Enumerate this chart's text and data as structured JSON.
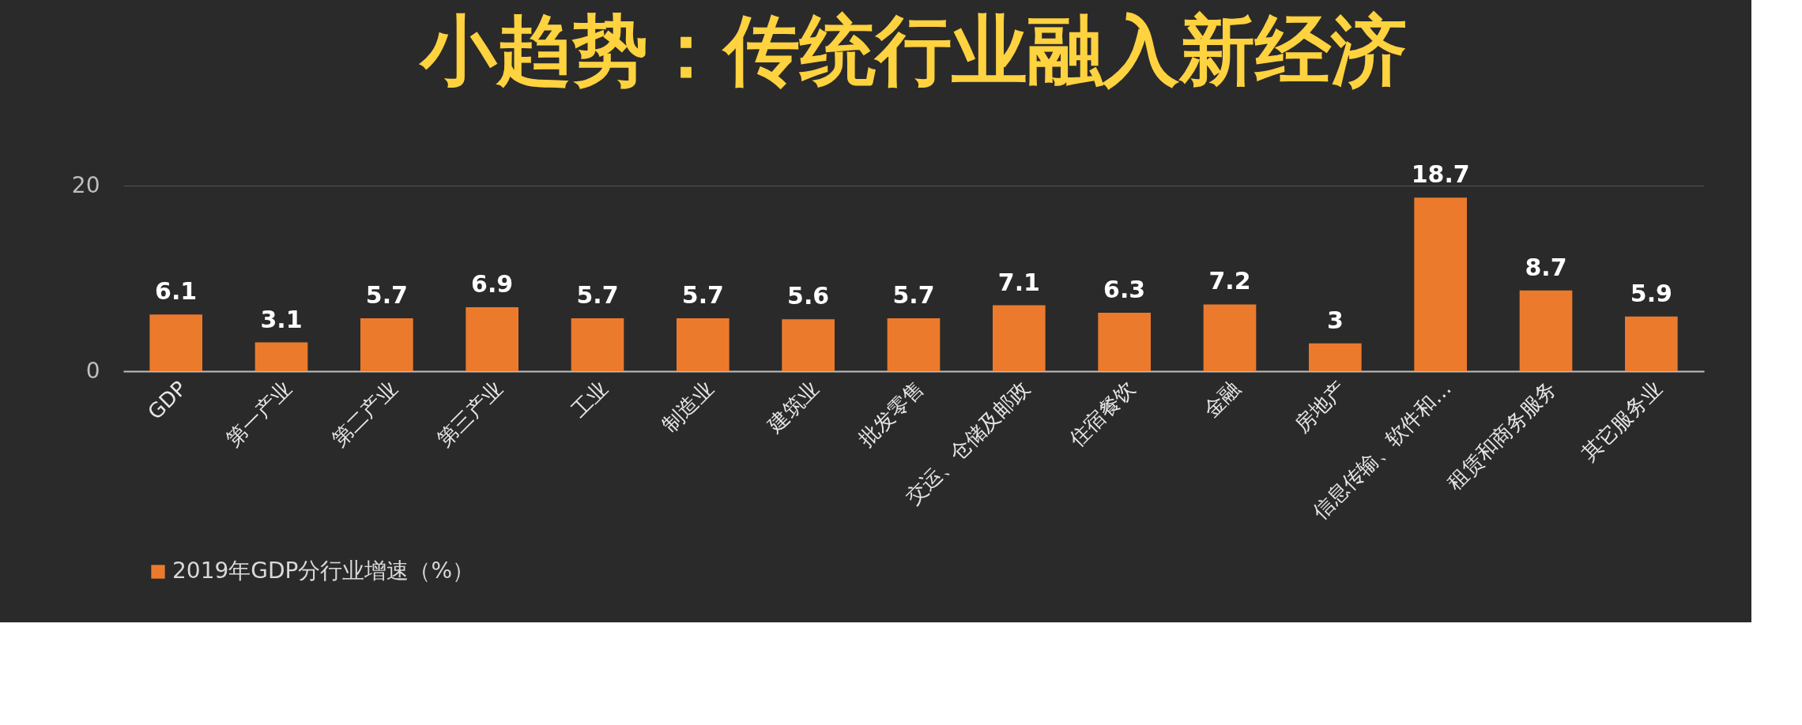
{
  "chart_data": {
    "type": "bar",
    "title": "小趋势：传统行业融入新经济",
    "categories": [
      "GDP",
      "第一产业",
      "第二产业",
      "第三产业",
      "工业",
      "制造业",
      "建筑业",
      "批发零售",
      "交运、仓储及邮政",
      "住宿餐饮",
      "金融",
      "房地产",
      "信息传输、软件和…",
      "租赁和商务服务",
      "其它服务业"
    ],
    "series": [
      {
        "name": "2019年GDP分行业增速（%）",
        "color": "#ec7a2c",
        "values": [
          6.1,
          3.1,
          5.7,
          6.9,
          5.7,
          5.7,
          5.6,
          5.7,
          7.1,
          6.3,
          7.2,
          3,
          18.7,
          8.7,
          5.9
        ]
      }
    ],
    "ylim": [
      0,
      20
    ],
    "yticks": [
      0,
      20
    ],
    "grid": "y",
    "data_labels": true,
    "legend": "bottom"
  }
}
